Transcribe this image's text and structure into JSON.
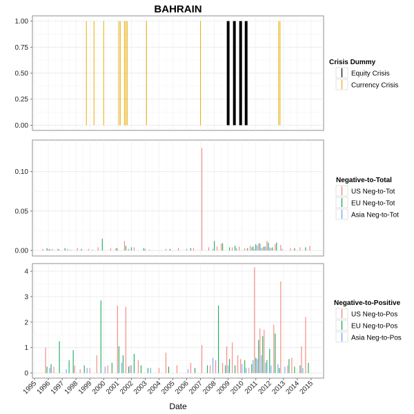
{
  "chart_data": {
    "title": "BAHRAIN",
    "xlabel": "Date",
    "x_ticks": [
      "1995",
      "1996",
      "1997",
      "1998",
      "1999",
      "2000",
      "2001",
      "2002",
      "2003",
      "2004",
      "2005",
      "2006",
      "2007",
      "2008",
      "2009",
      "2010",
      "2011",
      "2012",
      "2013",
      "2014",
      "2015"
    ],
    "xlim": [
      1994.85,
      2015.9
    ],
    "panels": [
      {
        "type": "bar",
        "legend_title": "Crisis Dummy",
        "ylim": [
          -0.05,
          1.05
        ],
        "y_ticks": [
          0,
          0.25,
          0.5,
          0.75,
          1
        ],
        "y_tick_labels": [
          "0.00",
          "0.25",
          "0.50",
          "0.75",
          "1.00"
        ],
        "series": [
          {
            "name": "Equity Crisis",
            "color": "#000000",
            "width": 4,
            "x": [
              2009.0,
              2009.45,
              2009.9,
              2010.3
            ],
            "values": [
              1,
              1,
              1,
              1
            ]
          },
          {
            "name": "Currency Crisis",
            "color": "#e6ab02",
            "width": 1,
            "x": [
              1998.75,
              1999.3,
              2000.0,
              2001.1,
              2001.2,
              2001.5,
              2001.6,
              2001.7,
              2003.1,
              2007.0,
              2012.65,
              2012.75
            ],
            "values": [
              1,
              1,
              1,
              1,
              1,
              1,
              1,
              1,
              1,
              1,
              1,
              1
            ]
          }
        ]
      },
      {
        "type": "bar",
        "legend_title": "Negative-to-Total",
        "ylim": [
          -0.007,
          0.14
        ],
        "y_ticks": [
          0,
          0.05,
          0.1
        ],
        "y_tick_labels": [
          "0.00",
          "0.05",
          "0.10"
        ],
        "series": [
          {
            "name": "US Neg-to-Tot",
            "color": "#f8766d",
            "x": [
              1995.6,
              1996.3,
              1996.8,
              1997.4,
              1998.1,
              1998.9,
              1999.6,
              2000.5,
              2001.0,
              2001.5,
              2002.2,
              2003.0,
              2004.5,
              2005.4,
              2006.0,
              2006.5,
              2007.1,
              2007.6,
              2008.2,
              2008.5,
              2009.3,
              2009.8,
              2010.2,
              2010.6,
              2010.9,
              2011.2,
              2011.5,
              2011.8,
              2012.1,
              2012.4,
              2012.8,
              2013.5,
              2014.2,
              2014.9
            ],
            "values": [
              0.002,
              0.002,
              0.001,
              0.002,
              0.003,
              0.002,
              0.004,
              0.003,
              0.003,
              0.012,
              0.004,
              0.002,
              0.002,
              0.003,
              0.002,
              0.003,
              0.13,
              0.004,
              0.005,
              0.009,
              0.004,
              0.005,
              0.003,
              0.006,
              0.002,
              0.009,
              0.004,
              0.012,
              0.003,
              0.008,
              0.007,
              0.003,
              0.004,
              0.006
            ]
          },
          {
            "name": "EU Neg-to-Tot",
            "color": "#00a04a",
            "x": [
              1995.9,
              1996.1,
              1996.7,
              1997.2,
              1998.4,
              1999.9,
              2000.9,
              2001.6,
              2002.0,
              2002.9,
              2004.8,
              2006.3,
              2008.0,
              2008.6,
              2009.1,
              2009.5,
              2010.4,
              2010.8,
              2011.0,
              2011.3,
              2011.6,
              2011.9,
              2012.2,
              2012.5,
              2013.8,
              2014.6
            ],
            "values": [
              0.003,
              0.002,
              0.002,
              0.003,
              0.002,
              0.015,
              0.003,
              0.006,
              0.004,
              0.003,
              0.002,
              0.003,
              0.012,
              0.009,
              0.004,
              0.006,
              0.003,
              0.005,
              0.008,
              0.009,
              0.005,
              0.01,
              0.004,
              0.01,
              0.003,
              0.004
            ]
          },
          {
            "name": "Asia Neg-to-Tot",
            "color": "#619cff",
            "x": [
              1996.0,
              1997.6,
              1999.2,
              2001.8,
              2003.3,
              2007.9,
              2009.6,
              2010.7,
              2011.1,
              2011.4,
              2011.7,
              2012.0,
              2012.9
            ],
            "values": [
              0.001,
              0.001,
              0.001,
              0.002,
              0.001,
              0.002,
              0.003,
              0.004,
              0.006,
              0.003,
              0.005,
              0.004,
              0.002
            ]
          }
        ]
      },
      {
        "type": "bar",
        "legend_title": "Negative-to-Positive",
        "ylim": [
          -0.2,
          4.3
        ],
        "y_ticks": [
          0,
          1,
          2,
          3,
          4
        ],
        "y_tick_labels": [
          "0",
          "1",
          "2",
          "3",
          "4"
        ],
        "series": [
          {
            "name": "US Neg-to-Pos",
            "color": "#f8766d",
            "x": [
              1995.8,
              1996.4,
              1997.9,
              1998.3,
              1999.0,
              1999.5,
              2000.3,
              2001.0,
              2001.6,
              2001.9,
              2002.5,
              2004.0,
              2004.5,
              2005.3,
              2006.3,
              2007.1,
              2007.7,
              2008.1,
              2008.6,
              2008.9,
              2009.3,
              2009.7,
              2009.9,
              2010.5,
              2010.9,
              2011.3,
              2011.6,
              2012.3,
              2012.8,
              2013.3,
              2013.6,
              2014.3,
              2014.6
            ],
            "values": [
              1.0,
              0.25,
              0.3,
              0.15,
              0.2,
              0.7,
              0.3,
              2.65,
              2.6,
              0.3,
              0.5,
              0.2,
              0.8,
              0.3,
              0.4,
              1.1,
              0.3,
              0.5,
              0.4,
              1.05,
              1.2,
              0.7,
              0.55,
              0.2,
              4.15,
              1.75,
              1.7,
              1.9,
              3.6,
              0.3,
              0.6,
              1.05,
              2.2
            ]
          },
          {
            "name": "EU Neg-to-Pos",
            "color": "#00a04a",
            "x": [
              1995.9,
              1996.2,
              1996.8,
              1997.5,
              1997.8,
              1998.6,
              1999.8,
              2000.6,
              2001.1,
              2001.4,
              2001.8,
              2002.2,
              2002.7,
              2003.2,
              2004.7,
              2006.6,
              2007.5,
              2008.3,
              2008.8,
              2009.1,
              2009.5,
              2010.2,
              2010.7,
              2011.0,
              2011.2,
              2011.5,
              2011.8,
              2012.0,
              2012.4,
              2012.7,
              2013.4,
              2013.8,
              2014.2,
              2014.8
            ],
            "values": [
              0.25,
              0.35,
              1.25,
              0.5,
              0.9,
              0.3,
              2.85,
              0.4,
              1.05,
              0.7,
              0.25,
              0.75,
              0.3,
              0.2,
              0.25,
              0.2,
              0.3,
              2.65,
              0.3,
              0.55,
              0.3,
              0.5,
              0.35,
              0.6,
              1.3,
              1.45,
              0.5,
              0.95,
              1.55,
              0.2,
              0.55,
              0.25,
              0.3,
              0.4
            ]
          },
          {
            "name": "Asia Neg-to-Pos",
            "color": "#619cff",
            "x": [
              1996.1,
              1997.3,
              1998.8,
              2000.1,
              2001.3,
              2002.0,
              2003.4,
              2006.1,
              2007.9,
              2009.0,
              2010.0,
              2010.3,
              2010.8,
              2011.1,
              2011.4,
              2011.7,
              2012.1,
              2012.6,
              2013.1,
              2014.4
            ],
            "values": [
              0.2,
              0.15,
              0.2,
              0.25,
              0.4,
              0.3,
              0.2,
              0.15,
              0.6,
              0.3,
              0.35,
              0.2,
              0.5,
              0.55,
              0.7,
              0.4,
              0.3,
              0.35,
              0.25,
              0.2
            ]
          }
        ]
      }
    ]
  }
}
